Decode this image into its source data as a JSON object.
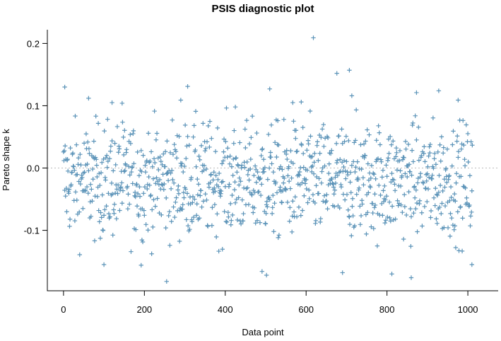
{
  "chart_data": {
    "type": "scatter",
    "title": "PSIS diagnostic plot",
    "xlabel": "Data point",
    "ylabel": "Pareto shape k",
    "xlim": [
      -40,
      1075
    ],
    "ylim": [
      -0.197,
      0.222
    ],
    "xticks": [
      0,
      200,
      400,
      600,
      800,
      1000
    ],
    "yticks": [
      -0.1,
      0.0,
      0.1,
      0.2
    ],
    "xtick_labels": [
      "0",
      "200",
      "400",
      "600",
      "800",
      "1000"
    ],
    "ytick_labels": [
      "-0.1",
      "0.0",
      "0.1",
      "0.2"
    ],
    "reference_line": 0.0,
    "marker": "+",
    "color": "#5b93b8",
    "n_points": 1012,
    "highlighted_points": [
      {
        "x": 3,
        "y": 0.13
      },
      {
        "x": 62,
        "y": 0.112
      },
      {
        "x": 120,
        "y": 0.105
      },
      {
        "x": 145,
        "y": 0.104
      },
      {
        "x": 290,
        "y": 0.109
      },
      {
        "x": 307,
        "y": 0.131
      },
      {
        "x": 425,
        "y": 0.098
      },
      {
        "x": 510,
        "y": 0.127
      },
      {
        "x": 567,
        "y": 0.105
      },
      {
        "x": 588,
        "y": 0.106
      },
      {
        "x": 618,
        "y": 0.209
      },
      {
        "x": 676,
        "y": 0.152
      },
      {
        "x": 707,
        "y": 0.157
      },
      {
        "x": 713,
        "y": 0.116
      },
      {
        "x": 873,
        "y": 0.121
      },
      {
        "x": 928,
        "y": 0.124
      },
      {
        "x": 976,
        "y": 0.109
      },
      {
        "x": 255,
        "y": -0.182
      },
      {
        "x": 100,
        "y": -0.155
      },
      {
        "x": 192,
        "y": -0.156
      },
      {
        "x": 491,
        "y": -0.166
      },
      {
        "x": 502,
        "y": -0.172
      },
      {
        "x": 690,
        "y": -0.168
      },
      {
        "x": 812,
        "y": -0.17
      },
      {
        "x": 860,
        "y": -0.176
      },
      {
        "x": 1010,
        "y": -0.155
      }
    ]
  }
}
